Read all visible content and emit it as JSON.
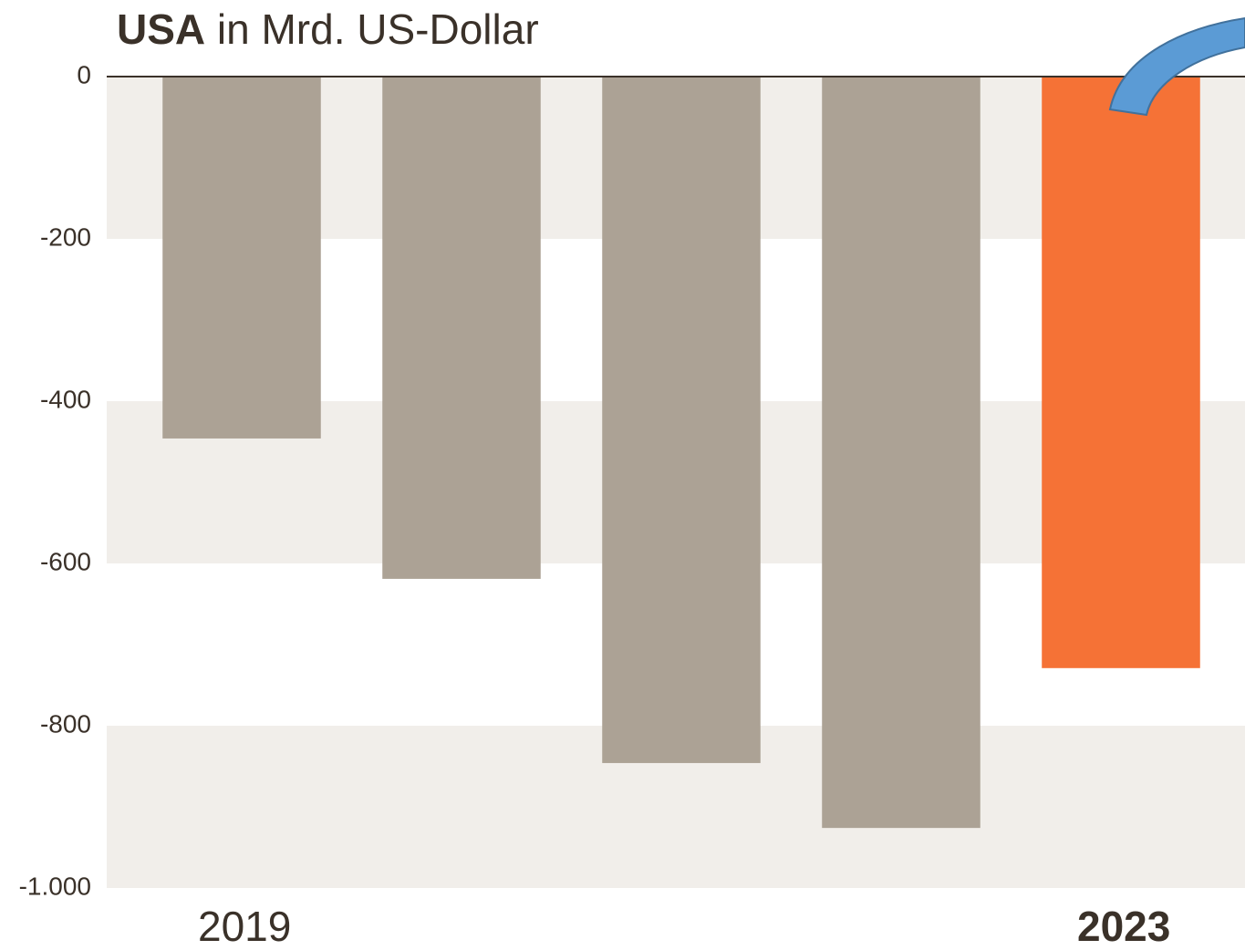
{
  "chart_data": {
    "type": "bar",
    "title_bold": "USA",
    "title": "in Mrd. US-Dollar",
    "categories": [
      "2019",
      null,
      null,
      null,
      "2023"
    ],
    "values": [
      -446,
      -619,
      -846,
      -926,
      -729
    ],
    "colors": [
      "#aca295",
      "#aca295",
      "#aca295",
      "#aca295",
      "#f57236"
    ],
    "ylim": [
      -1000,
      0
    ],
    "yticks": [
      0,
      -200,
      -400,
      -600,
      -800,
      {
        "value": -1000,
        "label": "-1.000"
      }
    ],
    "grid": "bands"
  }
}
